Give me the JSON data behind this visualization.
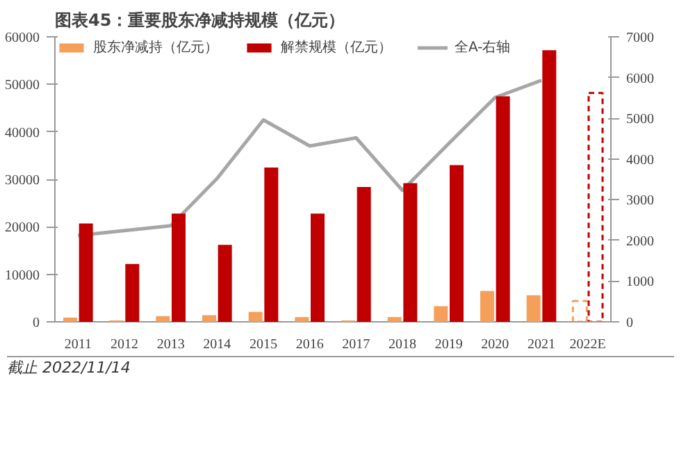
{
  "chart_data": {
    "type": "bar",
    "title": "图表45：重要股东净减持规模（亿元）",
    "categories": [
      "2011",
      "2012",
      "2013",
      "2014",
      "2015",
      "2016",
      "2017",
      "2018",
      "2019",
      "2020",
      "2021",
      "2022E"
    ],
    "series": [
      {
        "name": "股东净减持（亿元）",
        "color": "#f5a05a",
        "values": [
          900,
          300,
          1200,
          1400,
          2100,
          1000,
          300,
          1000,
          3300,
          6500,
          5600,
          null
        ]
      },
      {
        "name": "解禁规模（亿元）",
        "color": "#c00000",
        "values": [
          20700,
          12200,
          22800,
          16200,
          32500,
          22800,
          28400,
          29200,
          33000,
          47500,
          57200,
          null
        ]
      },
      {
        "color": "#f5a05a",
        "line_style": "dashed",
        "values": [
          null,
          null,
          null,
          null,
          null,
          null,
          null,
          null,
          null,
          null,
          null,
          4400
        ]
      },
      {
        "color": "#c00000",
        "line_style": "dashed",
        "values": [
          null,
          null,
          null,
          null,
          null,
          null,
          null,
          null,
          null,
          null,
          null,
          48200
        ]
      },
      {
        "name": "全A-右轴",
        "type": "line",
        "axis": "y2",
        "color": "#a6a6a6",
        "values": [
          2120,
          2240,
          2360,
          3520,
          4960,
          4320,
          4520,
          3230,
          4380,
          5510,
          5930,
          null
        ]
      }
    ],
    "ylim": [
      0,
      60000
    ],
    "yticks": [
      0,
      10000,
      20000,
      30000,
      40000,
      50000,
      60000
    ],
    "y2lim": [
      0,
      7000
    ],
    "y2ticks": [
      0,
      1000,
      2000,
      3000,
      4000,
      5000,
      6000,
      7000
    ],
    "grid": false,
    "legend": "top",
    "annotations": [
      "截止 2022/11/14"
    ]
  }
}
